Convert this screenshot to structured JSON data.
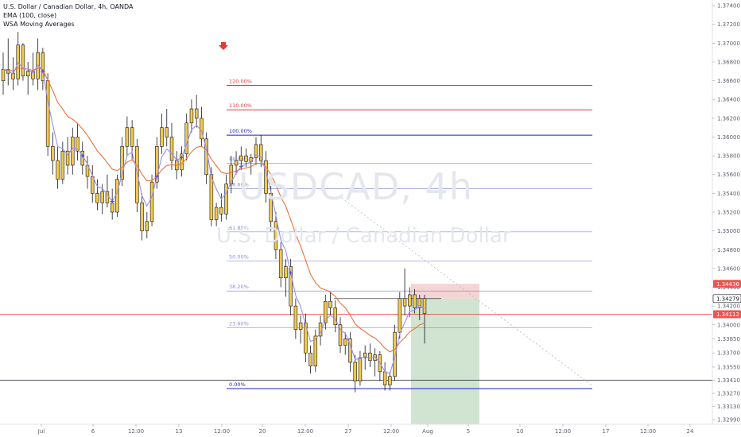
{
  "header": {
    "title": "U.S. Dollar / Canadian Dollar, 4h, OANDA",
    "ema_label": "EMA (100, close)",
    "wsa_label": "WSA Moving Averages"
  },
  "watermark": {
    "symbol": "USDCAD, 4h",
    "name": "U.S. Dollar / Canadian Dollar"
  },
  "colors": {
    "candle_body": "#f2c94c",
    "candle_outline": "#131722",
    "ema": "#f0703a",
    "wsa": "#9c8cf0",
    "fib_upper": "#e53935",
    "fib_main": "#1d1dcc",
    "fib_inner": "#8a8fd6",
    "stop_zone": "#f4cccc",
    "target_zone": "#c9dfc9",
    "price_line": "#ef5350"
  },
  "chart_data": {
    "type": "candlestick",
    "symbol": "USDCAD",
    "timeframe": "4h",
    "source": "OANDA",
    "y_axis": {
      "range": [
        1.3294,
        1.3746
      ],
      "ticks": [
        "1.37400",
        "1.37200",
        "1.37000",
        "1.36800",
        "1.36600",
        "1.36400",
        "1.36200",
        "1.36000",
        "1.35800",
        "1.35600",
        "1.35400",
        "1.35200",
        "1.35000",
        "1.34800",
        "1.34600",
        "1.34400",
        "1.34200",
        "1.34000",
        "1.33850",
        "1.33700",
        "1.33550",
        "1.33410",
        "1.33270",
        "1.33130",
        "1.32990"
      ]
    },
    "x_axis": {
      "ticks": [
        {
          "label": "Jul",
          "x": 52
        },
        {
          "label": "6",
          "x": 117
        },
        {
          "label": "12:00",
          "x": 171
        },
        {
          "label": "13",
          "x": 225
        },
        {
          "label": "12:00",
          "x": 279
        },
        {
          "label": "20",
          "x": 330
        },
        {
          "label": "12:00",
          "x": 384
        },
        {
          "label": "27",
          "x": 438
        },
        {
          "label": "12:00",
          "x": 492
        },
        {
          "label": "Aug",
          "x": 538
        },
        {
          "label": "5",
          "x": 589
        },
        {
          "label": "10",
          "x": 654
        },
        {
          "label": "12:00",
          "x": 708
        },
        {
          "label": "17",
          "x": 762
        },
        {
          "label": "12:00",
          "x": 815
        },
        {
          "label": "24",
          "x": 868
        }
      ]
    },
    "fibonacci": [
      {
        "label": "120.00%",
        "price": 1.3655,
        "group": "upper"
      },
      {
        "label": "110.00%",
        "price": 1.3629,
        "group": "upper"
      },
      {
        "label": "100.00%",
        "price": 1.3602,
        "group": "main"
      },
      {
        "label": "88.60%",
        "price": 1.3572,
        "group": "inner"
      },
      {
        "label": "78.60%",
        "price": 1.3545,
        "group": "inner"
      },
      {
        "label": "61.80%",
        "price": 1.3499,
        "group": "inner"
      },
      {
        "label": "50.00%",
        "price": 1.3468,
        "group": "inner"
      },
      {
        "label": "38.20%",
        "price": 1.3436,
        "group": "inner"
      },
      {
        "label": "23.60%",
        "price": 1.3397,
        "group": "inner"
      },
      {
        "label": "0.00%",
        "price": 1.3332,
        "group": "main"
      }
    ],
    "price_tags": [
      {
        "label": "1.34436",
        "price": 1.34436,
        "style": "red"
      },
      {
        "label": "1.34279",
        "price": 1.34279,
        "style": "dark"
      },
      {
        "label": "1.34112",
        "price": 1.34112,
        "style": "red"
      }
    ],
    "horizontal_levels": [
      {
        "price": 1.3341,
        "color": "#131722"
      },
      {
        "price": 1.34112,
        "color": "#ef5350"
      }
    ],
    "position": {
      "entry": 1.34279,
      "stop": 1.34436,
      "target": 1.3299
    },
    "signal_arrow": "down",
    "candles": [
      {
        "o": 1.366,
        "h": 1.369,
        "l": 1.3645,
        "c": 1.3672
      },
      {
        "o": 1.3672,
        "h": 1.3705,
        "l": 1.3655,
        "c": 1.3668
      },
      {
        "o": 1.3668,
        "h": 1.3685,
        "l": 1.365,
        "c": 1.3662
      },
      {
        "o": 1.3662,
        "h": 1.3712,
        "l": 1.3655,
        "c": 1.3698
      },
      {
        "o": 1.3698,
        "h": 1.37,
        "l": 1.366,
        "c": 1.3665
      },
      {
        "o": 1.3665,
        "h": 1.368,
        "l": 1.3645,
        "c": 1.367
      },
      {
        "o": 1.367,
        "h": 1.369,
        "l": 1.3655,
        "c": 1.3662
      },
      {
        "o": 1.3662,
        "h": 1.3705,
        "l": 1.365,
        "c": 1.369
      },
      {
        "o": 1.369,
        "h": 1.3695,
        "l": 1.365,
        "c": 1.366
      },
      {
        "o": 1.366,
        "h": 1.3668,
        "l": 1.358,
        "c": 1.359
      },
      {
        "o": 1.359,
        "h": 1.3605,
        "l": 1.356,
        "c": 1.3575
      },
      {
        "o": 1.3575,
        "h": 1.359,
        "l": 1.3545,
        "c": 1.3555
      },
      {
        "o": 1.3555,
        "h": 1.3595,
        "l": 1.355,
        "c": 1.3585
      },
      {
        "o": 1.3585,
        "h": 1.36,
        "l": 1.356,
        "c": 1.357
      },
      {
        "o": 1.357,
        "h": 1.361,
        "l": 1.356,
        "c": 1.36
      },
      {
        "o": 1.36,
        "h": 1.3615,
        "l": 1.3575,
        "c": 1.3585
      },
      {
        "o": 1.3585,
        "h": 1.3595,
        "l": 1.356,
        "c": 1.357
      },
      {
        "o": 1.357,
        "h": 1.358,
        "l": 1.3545,
        "c": 1.3558
      },
      {
        "o": 1.3558,
        "h": 1.357,
        "l": 1.353,
        "c": 1.354
      },
      {
        "o": 1.354,
        "h": 1.3555,
        "l": 1.3522,
        "c": 1.353
      },
      {
        "o": 1.353,
        "h": 1.355,
        "l": 1.3518,
        "c": 1.3542
      },
      {
        "o": 1.3542,
        "h": 1.356,
        "l": 1.3525,
        "c": 1.353
      },
      {
        "o": 1.353,
        "h": 1.3545,
        "l": 1.3512,
        "c": 1.352
      },
      {
        "o": 1.352,
        "h": 1.356,
        "l": 1.3515,
        "c": 1.3555
      },
      {
        "o": 1.3555,
        "h": 1.36,
        "l": 1.3548,
        "c": 1.359
      },
      {
        "o": 1.359,
        "h": 1.3622,
        "l": 1.358,
        "c": 1.361
      },
      {
        "o": 1.361,
        "h": 1.3618,
        "l": 1.3575,
        "c": 1.359
      },
      {
        "o": 1.359,
        "h": 1.3598,
        "l": 1.352,
        "c": 1.353
      },
      {
        "o": 1.353,
        "h": 1.354,
        "l": 1.349,
        "c": 1.35
      },
      {
        "o": 1.35,
        "h": 1.352,
        "l": 1.3492,
        "c": 1.351
      },
      {
        "o": 1.351,
        "h": 1.356,
        "l": 1.3505,
        "c": 1.3552
      },
      {
        "o": 1.3552,
        "h": 1.36,
        "l": 1.3545,
        "c": 1.359
      },
      {
        "o": 1.359,
        "h": 1.3625,
        "l": 1.3582,
        "c": 1.361
      },
      {
        "o": 1.361,
        "h": 1.363,
        "l": 1.359,
        "c": 1.36
      },
      {
        "o": 1.36,
        "h": 1.3615,
        "l": 1.3565,
        "c": 1.3575
      },
      {
        "o": 1.3575,
        "h": 1.3585,
        "l": 1.3555,
        "c": 1.3565
      },
      {
        "o": 1.3565,
        "h": 1.359,
        "l": 1.3558,
        "c": 1.3582
      },
      {
        "o": 1.3582,
        "h": 1.3625,
        "l": 1.3575,
        "c": 1.3615
      },
      {
        "o": 1.3615,
        "h": 1.364,
        "l": 1.3605,
        "c": 1.363
      },
      {
        "o": 1.363,
        "h": 1.3645,
        "l": 1.361,
        "c": 1.362
      },
      {
        "o": 1.362,
        "h": 1.3632,
        "l": 1.359,
        "c": 1.3598
      },
      {
        "o": 1.3598,
        "h": 1.3605,
        "l": 1.355,
        "c": 1.356
      },
      {
        "o": 1.356,
        "h": 1.3568,
        "l": 1.3505,
        "c": 1.3512
      },
      {
        "o": 1.3512,
        "h": 1.353,
        "l": 1.3505,
        "c": 1.3525
      },
      {
        "o": 1.3525,
        "h": 1.354,
        "l": 1.351,
        "c": 1.3518
      },
      {
        "o": 1.3518,
        "h": 1.356,
        "l": 1.3512,
        "c": 1.355
      },
      {
        "o": 1.355,
        "h": 1.358,
        "l": 1.354,
        "c": 1.357
      },
      {
        "o": 1.357,
        "h": 1.3585,
        "l": 1.356,
        "c": 1.3575
      },
      {
        "o": 1.3575,
        "h": 1.359,
        "l": 1.3565,
        "c": 1.358
      },
      {
        "o": 1.358,
        "h": 1.3588,
        "l": 1.3568,
        "c": 1.3574
      },
      {
        "o": 1.3574,
        "h": 1.3582,
        "l": 1.356,
        "c": 1.3578
      },
      {
        "o": 1.3578,
        "h": 1.36,
        "l": 1.357,
        "c": 1.3592
      },
      {
        "o": 1.3592,
        "h": 1.3602,
        "l": 1.3568,
        "c": 1.3575
      },
      {
        "o": 1.3575,
        "h": 1.3585,
        "l": 1.353,
        "c": 1.354
      },
      {
        "o": 1.354,
        "h": 1.3548,
        "l": 1.35,
        "c": 1.351
      },
      {
        "o": 1.351,
        "h": 1.352,
        "l": 1.347,
        "c": 1.348
      },
      {
        "o": 1.348,
        "h": 1.3488,
        "l": 1.344,
        "c": 1.345
      },
      {
        "o": 1.345,
        "h": 1.347,
        "l": 1.343,
        "c": 1.3462
      },
      {
        "o": 1.3462,
        "h": 1.347,
        "l": 1.341,
        "c": 1.342
      },
      {
        "o": 1.342,
        "h": 1.3428,
        "l": 1.3385,
        "c": 1.3395
      },
      {
        "o": 1.3395,
        "h": 1.341,
        "l": 1.338,
        "c": 1.3402
      },
      {
        "o": 1.3402,
        "h": 1.3412,
        "l": 1.336,
        "c": 1.337
      },
      {
        "o": 1.337,
        "h": 1.3378,
        "l": 1.3348,
        "c": 1.3356
      },
      {
        "o": 1.3356,
        "h": 1.3395,
        "l": 1.335,
        "c": 1.3388
      },
      {
        "o": 1.3388,
        "h": 1.341,
        "l": 1.3378,
        "c": 1.3402
      },
      {
        "o": 1.3402,
        "h": 1.3432,
        "l": 1.3395,
        "c": 1.3425
      },
      {
        "o": 1.3425,
        "h": 1.3435,
        "l": 1.341,
        "c": 1.3418
      },
      {
        "o": 1.3418,
        "h": 1.3426,
        "l": 1.3392,
        "c": 1.34
      },
      {
        "o": 1.34,
        "h": 1.3408,
        "l": 1.337,
        "c": 1.3378
      },
      {
        "o": 1.3378,
        "h": 1.3392,
        "l": 1.3368,
        "c": 1.3385
      },
      {
        "o": 1.3385,
        "h": 1.3392,
        "l": 1.335,
        "c": 1.336
      },
      {
        "o": 1.336,
        "h": 1.3368,
        "l": 1.3328,
        "c": 1.334
      },
      {
        "o": 1.334,
        "h": 1.3372,
        "l": 1.3335,
        "c": 1.3365
      },
      {
        "o": 1.3365,
        "h": 1.3378,
        "l": 1.3352,
        "c": 1.337
      },
      {
        "o": 1.337,
        "h": 1.338,
        "l": 1.3355,
        "c": 1.3362
      },
      {
        "o": 1.3362,
        "h": 1.3375,
        "l": 1.3345,
        "c": 1.3368
      },
      {
        "o": 1.3368,
        "h": 1.3372,
        "l": 1.334,
        "c": 1.335
      },
      {
        "o": 1.335,
        "h": 1.336,
        "l": 1.333,
        "c": 1.3336
      },
      {
        "o": 1.3336,
        "h": 1.335,
        "l": 1.333,
        "c": 1.3345
      },
      {
        "o": 1.3345,
        "h": 1.34,
        "l": 1.334,
        "c": 1.3392
      },
      {
        "o": 1.3392,
        "h": 1.3435,
        "l": 1.3385,
        "c": 1.3428
      },
      {
        "o": 1.3428,
        "h": 1.346,
        "l": 1.341,
        "c": 1.342
      },
      {
        "o": 1.342,
        "h": 1.344,
        "l": 1.3408,
        "c": 1.3432
      },
      {
        "o": 1.3432,
        "h": 1.3438,
        "l": 1.3412,
        "c": 1.3418
      },
      {
        "o": 1.3418,
        "h": 1.3432,
        "l": 1.3405,
        "c": 1.3428
      },
      {
        "o": 1.3428,
        "h": 1.3432,
        "l": 1.338,
        "c": 1.3412
      }
    ]
  }
}
